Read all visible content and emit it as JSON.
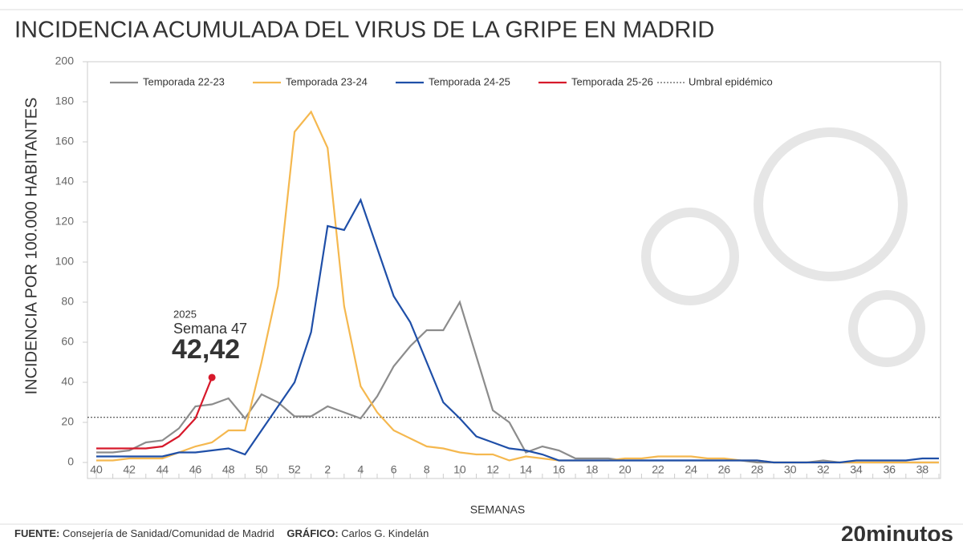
{
  "chart_data": {
    "type": "line",
    "title": "INCIDENCIA ACUMULADA DEL VIRUS DE LA GRIPE EN MADRID",
    "x_label": "SEMANAS",
    "y_label": "INCIDENCIA POR 100.000 HABITANTES",
    "categories": [
      "40",
      null,
      "42",
      null,
      "44",
      null,
      "46",
      null,
      "48",
      null,
      "50",
      null,
      "52",
      null,
      "2",
      null,
      "4",
      null,
      "6",
      null,
      "8",
      null,
      "10",
      null,
      "12",
      null,
      "14",
      null,
      "16",
      null,
      "18",
      null,
      "20",
      null,
      "22",
      null,
      "24",
      null,
      "26",
      null,
      "28",
      null,
      "30",
      null,
      "32",
      null,
      "34",
      null,
      "36",
      null,
      "38",
      null
    ],
    "ylim": [
      0,
      200
    ],
    "yticks": [
      0,
      20,
      40,
      60,
      80,
      100,
      120,
      140,
      160,
      180,
      200
    ],
    "legend": "top-left",
    "series": [
      {
        "name": "Temporada 22-23",
        "color": "#8c8c8c",
        "values": [
          5,
          5,
          6,
          10,
          11,
          17,
          28,
          29,
          32,
          22,
          34,
          30,
          23,
          23,
          28,
          25,
          22,
          33,
          48,
          58,
          66,
          66,
          80,
          53,
          26,
          20,
          5,
          8,
          6,
          2,
          2,
          2,
          1,
          1,
          1,
          1,
          1,
          1,
          1,
          1,
          0,
          0,
          0,
          0,
          1,
          0,
          0,
          0,
          0,
          0,
          0,
          0
        ]
      },
      {
        "name": "Temporada 23-24",
        "color": "#f5b84f",
        "values": [
          1,
          1,
          2,
          2,
          2,
          5,
          8,
          10,
          16,
          16,
          50,
          88,
          165,
          175,
          157,
          78,
          38,
          25,
          16,
          12,
          8,
          7,
          5,
          4,
          4,
          1,
          3,
          2,
          1,
          1,
          1,
          1,
          2,
          2,
          3,
          3,
          3,
          2,
          2,
          1,
          1,
          0,
          0,
          0,
          0,
          0,
          0,
          0,
          0,
          0,
          0,
          0
        ]
      },
      {
        "name": "Temporada 24-25",
        "color": "#1f4fa8",
        "values": [
          3,
          3,
          3,
          3,
          3,
          5,
          5,
          6,
          7,
          4,
          16,
          28,
          40,
          65,
          118,
          116,
          131,
          107,
          83,
          70,
          50,
          30,
          22,
          13,
          10,
          7,
          6,
          4,
          1,
          1,
          1,
          1,
          1,
          1,
          1,
          1,
          1,
          1,
          1,
          1,
          1,
          0,
          0,
          0,
          0,
          0,
          1,
          1,
          1,
          1,
          2,
          2
        ]
      },
      {
        "name": "Temporada 25-26",
        "color": "#d7192b",
        "values": [
          7,
          7,
          7,
          7,
          8,
          13,
          22,
          42.42,
          null,
          null,
          null,
          null,
          null,
          null,
          null,
          null,
          null,
          null,
          null,
          null,
          null,
          null,
          null,
          null,
          null,
          null,
          null,
          null,
          null,
          null,
          null,
          null,
          null,
          null,
          null,
          null,
          null,
          null,
          null,
          null,
          null,
          null,
          null,
          null,
          null,
          null,
          null,
          null,
          null,
          null,
          null,
          null
        ],
        "value_labels": [
          null,
          null,
          null,
          null,
          null,
          null,
          null,
          "42,42",
          null,
          null,
          null,
          null,
          null,
          null,
          null,
          null,
          null,
          null,
          null,
          null,
          null,
          null,
          null,
          null,
          null,
          null,
          null,
          null,
          null,
          null,
          null,
          null,
          null,
          null,
          null,
          null,
          null,
          null,
          null,
          null,
          null,
          null,
          null,
          null,
          null,
          null,
          null,
          null,
          null,
          null,
          null,
          null
        ]
      }
    ],
    "threshold": {
      "name": "Umbral epidémico",
      "value": 22.5
    },
    "annotation": {
      "year": "2025",
      "week": "Semana 47"
    },
    "source": {
      "label": "FUENTE:",
      "text": "Consejería de Sanidad/Comunidad de Madrid"
    },
    "credit": {
      "label": "GRÁFICO:",
      "text": "Carlos G. Kindelán"
    },
    "brand": "20minutos"
  }
}
